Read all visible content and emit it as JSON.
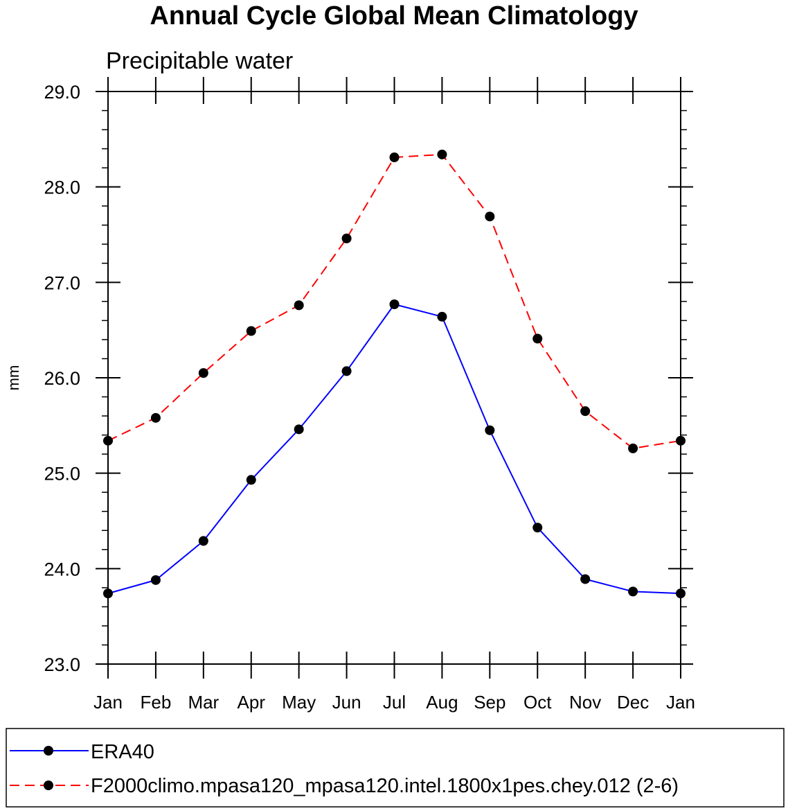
{
  "chart_data": {
    "type": "line",
    "title": "Annual Cycle Global Mean Climatology",
    "subtitle": "Precipitable water",
    "xlabel": "",
    "ylabel": "mm",
    "categories": [
      "Jan",
      "Feb",
      "Mar",
      "Apr",
      "May",
      "Jun",
      "Jul",
      "Aug",
      "Sep",
      "Oct",
      "Nov",
      "Dec",
      "Jan"
    ],
    "ylim": [
      23.0,
      29.0
    ],
    "y_ticks": [
      "23.0",
      "24.0",
      "25.0",
      "26.0",
      "27.0",
      "28.0",
      "29.0"
    ],
    "y_major_step": 1.0,
    "y_minor_step": 0.2,
    "grid": false,
    "legend_position": "bottom",
    "series": [
      {
        "name": "ERA40",
        "color": "#0000ff",
        "line_style": "solid",
        "marker": "filled-circle",
        "values": [
          23.74,
          23.88,
          24.29,
          24.93,
          25.46,
          26.07,
          26.77,
          26.64,
          25.45,
          24.43,
          23.89,
          23.76,
          23.74
        ]
      },
      {
        "name": "F2000climo.mpasa120_mpasa120.intel.1800x1pes.chey.012 (2-6)",
        "color": "#ff0000",
        "line_style": "dashed",
        "marker": "filled-circle",
        "values": [
          25.34,
          25.58,
          26.05,
          26.49,
          26.76,
          27.46,
          28.31,
          28.34,
          27.69,
          26.41,
          25.65,
          25.26,
          25.34
        ]
      }
    ]
  }
}
